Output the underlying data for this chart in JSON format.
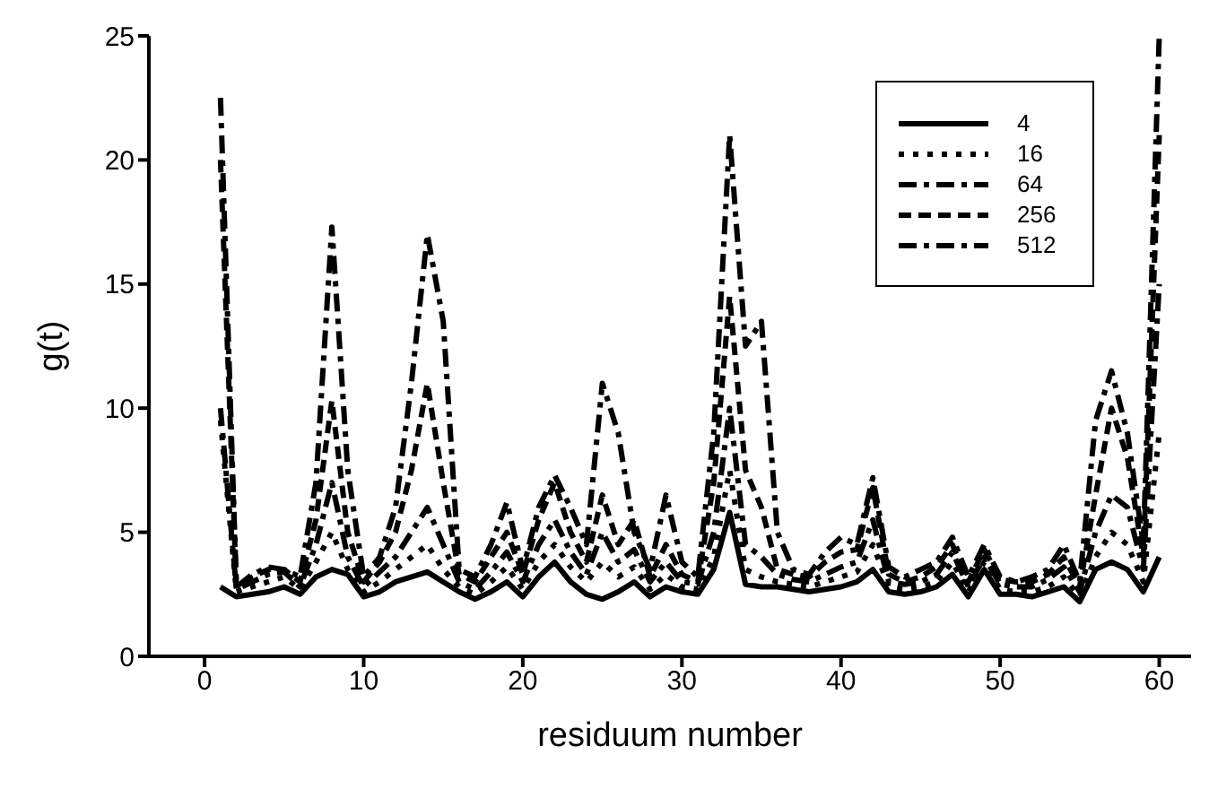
{
  "chart_data": {
    "type": "line",
    "xlabel": "residuum number",
    "ylabel": "g(t)",
    "x": [
      1,
      2,
      3,
      4,
      5,
      6,
      7,
      8,
      9,
      10,
      11,
      12,
      13,
      14,
      15,
      16,
      17,
      18,
      19,
      20,
      21,
      22,
      23,
      24,
      25,
      26,
      27,
      28,
      29,
      30,
      31,
      32,
      33,
      34,
      35,
      36,
      37,
      38,
      39,
      40,
      41,
      42,
      43,
      44,
      45,
      46,
      47,
      48,
      49,
      50,
      51,
      52,
      53,
      54,
      55,
      56,
      57,
      58,
      59,
      60
    ],
    "xlim": [
      -3.5,
      62
    ],
    "xticks": [
      0,
      10,
      20,
      30,
      40,
      50,
      60
    ],
    "ylim": [
      0,
      25
    ],
    "yticks": [
      0,
      5,
      10,
      15,
      20,
      25
    ],
    "grid": false,
    "legend": "top right",
    "marker": "none",
    "series": [
      {
        "name": "4",
        "color": "#000000",
        "line_style": "solid",
        "values": [
          2.8,
          2.4,
          2.5,
          2.6,
          2.8,
          2.5,
          3.2,
          3.5,
          3.3,
          2.4,
          2.6,
          3.0,
          3.2,
          3.4,
          3.0,
          2.6,
          2.3,
          2.6,
          3.0,
          2.4,
          3.2,
          3.8,
          3.0,
          2.5,
          2.3,
          2.6,
          3.0,
          2.4,
          2.8,
          2.6,
          2.5,
          3.5,
          5.8,
          2.9,
          2.8,
          2.8,
          2.7,
          2.6,
          2.7,
          2.8,
          3.0,
          3.5,
          2.6,
          2.5,
          2.6,
          2.8,
          3.3,
          2.4,
          3.5,
          2.5,
          2.5,
          2.4,
          2.6,
          2.8,
          2.2,
          3.5,
          3.8,
          3.5,
          2.6,
          4.0
        ]
      },
      {
        "name": "16",
        "color": "#000000",
        "line_style": "dotted",
        "values": [
          9.5,
          2.6,
          2.8,
          3.0,
          3.2,
          2.7,
          3.8,
          5.0,
          3.5,
          2.6,
          3.0,
          3.5,
          4.0,
          4.5,
          3.5,
          2.8,
          2.5,
          3.0,
          3.6,
          2.7,
          3.8,
          4.5,
          3.6,
          3.0,
          3.8,
          3.2,
          3.6,
          2.7,
          3.3,
          2.8,
          2.7,
          4.0,
          7.5,
          3.5,
          3.2,
          3.0,
          2.9,
          2.8,
          3.0,
          3.2,
          3.4,
          4.5,
          2.8,
          2.7,
          2.8,
          3.0,
          3.8,
          2.6,
          3.8,
          2.7,
          2.6,
          2.6,
          2.8,
          3.2,
          2.4,
          4.0,
          5.0,
          4.5,
          3.0,
          9.0
        ]
      },
      {
        "name": "64",
        "color": "#000000",
        "line_style": "dashed",
        "values": [
          10,
          2.7,
          3.0,
          3.3,
          3.4,
          2.8,
          4.5,
          7.0,
          4.0,
          2.8,
          3.4,
          4.0,
          5.0,
          6.0,
          4.5,
          3.0,
          2.7,
          3.4,
          4.2,
          3.0,
          4.5,
          5.5,
          4.2,
          3.3,
          5.0,
          3.8,
          4.3,
          3.0,
          3.8,
          3.0,
          2.9,
          5.0,
          10.0,
          4.5,
          4.0,
          3.3,
          3.1,
          3.0,
          3.3,
          3.6,
          3.8,
          5.5,
          3.0,
          2.9,
          3.0,
          3.3,
          4.2,
          2.8,
          4.0,
          2.9,
          2.8,
          2.8,
          3.1,
          3.6,
          2.6,
          5.0,
          6.5,
          6.0,
          3.5,
          15
        ]
      },
      {
        "name": "256",
        "color": "#000000",
        "line_style": "dashed",
        "values": [
          20,
          2.8,
          3.2,
          3.5,
          3.5,
          3.0,
          5.5,
          10.3,
          5.0,
          3.0,
          3.8,
          5.0,
          7.5,
          11.0,
          7.0,
          3.3,
          3.0,
          4.0,
          5.0,
          3.3,
          5.5,
          7.0,
          5.0,
          3.8,
          6.5,
          4.5,
          5.5,
          3.2,
          4.5,
          3.3,
          3.0,
          7.0,
          14.5,
          7.5,
          6.0,
          3.5,
          3.3,
          3.2,
          3.8,
          4.2,
          4.3,
          6.8,
          3.3,
          3.0,
          3.2,
          3.6,
          4.5,
          3.0,
          4.3,
          3.1,
          3.0,
          3.0,
          3.3,
          4.0,
          2.8,
          6.5,
          10.0,
          8.0,
          4.0,
          21
        ]
      },
      {
        "name": "512",
        "color": "#000000",
        "line_style": "dashed",
        "values": [
          22.5,
          2.8,
          3.3,
          3.6,
          3.5,
          3.2,
          7.0,
          17.3,
          7.5,
          3.2,
          4.0,
          6.0,
          11.0,
          17.0,
          13.5,
          3.5,
          3.2,
          4.5,
          6.2,
          3.5,
          6.0,
          7.3,
          6.0,
          4.5,
          11.0,
          9.0,
          5.0,
          3.5,
          6.5,
          3.8,
          3.2,
          9.0,
          21.0,
          12.5,
          13.5,
          5.0,
          3.5,
          3.3,
          4.2,
          4.8,
          4.5,
          7.2,
          3.6,
          3.2,
          3.5,
          3.8,
          4.8,
          3.2,
          4.5,
          3.2,
          3.0,
          3.2,
          3.5,
          4.5,
          3.0,
          9.5,
          11.5,
          9.0,
          4.5,
          25
        ]
      }
    ]
  }
}
